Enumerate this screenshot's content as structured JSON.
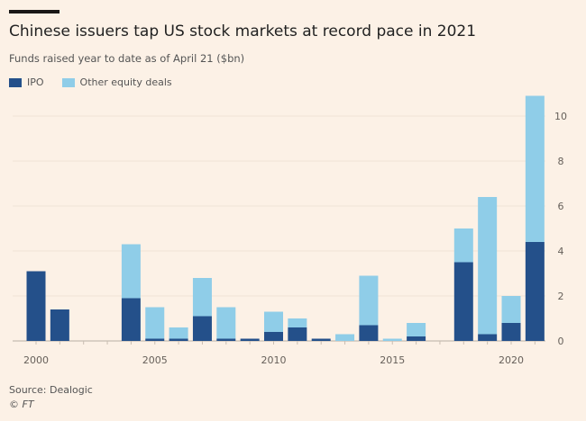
{
  "chart_data": {
    "type": "bar",
    "stacked": true,
    "title": "Chinese issuers tap US stock markets at record pace in 2021",
    "subtitle": "Funds raised year to date as of April 21 ($bn)",
    "x": [
      2000,
      2001,
      2002,
      2003,
      2004,
      2005,
      2006,
      2007,
      2008,
      2009,
      2010,
      2011,
      2012,
      2013,
      2014,
      2015,
      2016,
      2017,
      2018,
      2019,
      2020,
      2021
    ],
    "series": [
      {
        "name": "IPO",
        "color": "#24508a",
        "values": [
          3.1,
          1.4,
          0,
          0,
          1.9,
          0.1,
          0.1,
          1.1,
          0.1,
          0.1,
          0.4,
          0.6,
          0.1,
          0,
          0.7,
          0,
          0.2,
          0,
          3.5,
          0.3,
          0.8,
          4.4
        ]
      },
      {
        "name": "Other equity deals",
        "color": "#8fcde8",
        "values": [
          0,
          0,
          0,
          0,
          2.4,
          1.4,
          0.5,
          1.7,
          1.4,
          0,
          0.9,
          0.4,
          0,
          0.3,
          2.2,
          0.1,
          0.6,
          0,
          1.5,
          6.1,
          1.2,
          6.5
        ]
      }
    ],
    "x_tick_labels": [
      "2000",
      "2005",
      "2010",
      "2015",
      "2020"
    ],
    "y_ticks": [
      0,
      2,
      4,
      6,
      8,
      10
    ],
    "ylim": [
      0,
      11
    ],
    "y_axis_side": "right",
    "grid": true,
    "legend_position": "top-left"
  },
  "source": "Source: Dealogic",
  "credit": "© FT"
}
